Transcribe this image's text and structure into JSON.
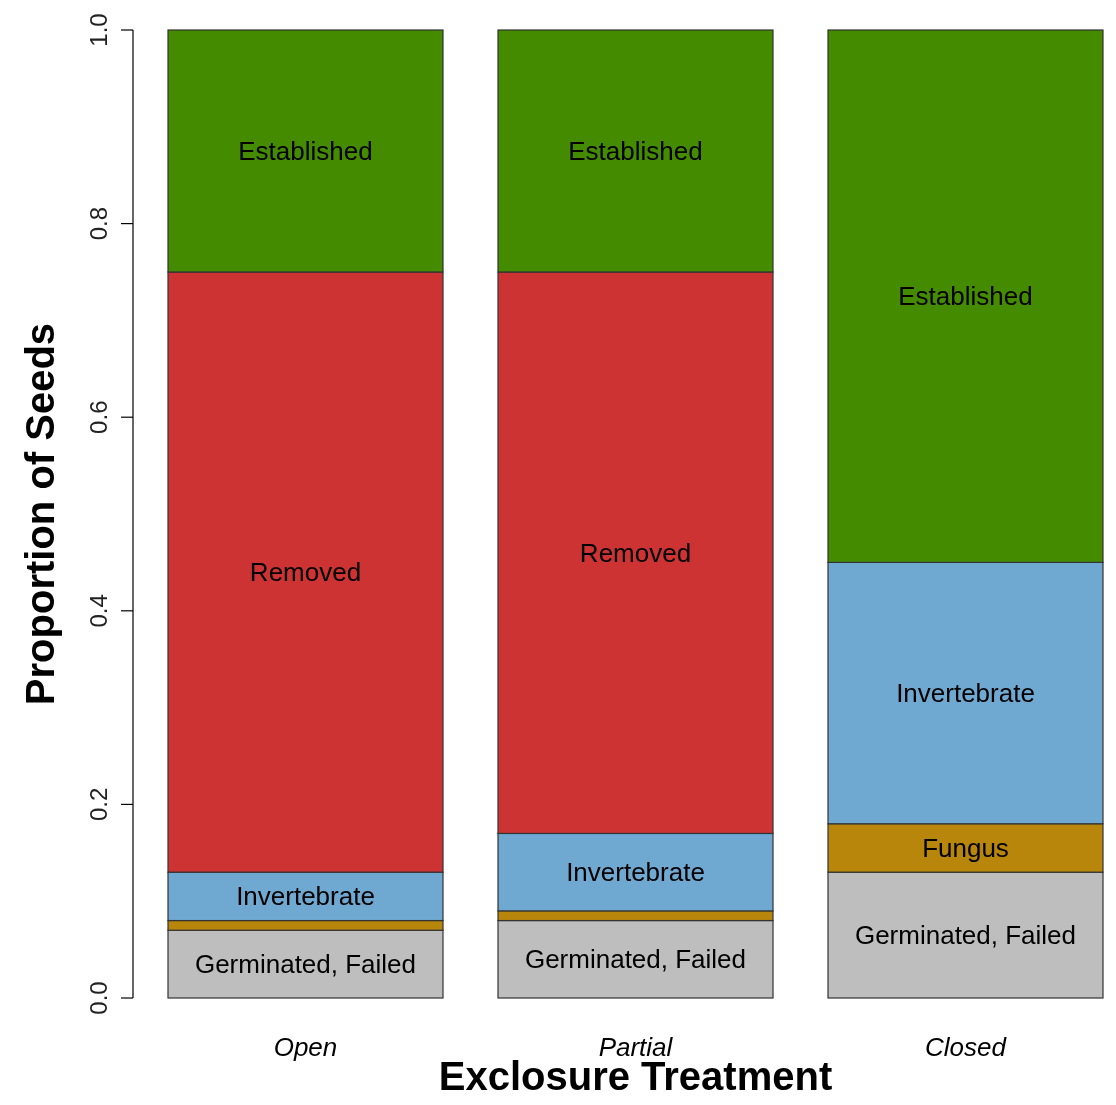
{
  "chart_data": {
    "type": "bar",
    "stacked": true,
    "xlabel": "Exclosure Treatment",
    "ylabel": "Proportion of Seeds",
    "categories": [
      "Open",
      "Partial",
      "Closed"
    ],
    "series": [
      {
        "name": "Germinated, Failed",
        "color": "#bebebe",
        "values": [
          0.07,
          0.08,
          0.13
        ]
      },
      {
        "name": "Fungus",
        "color": "#b8860b",
        "values": [
          0.01,
          0.01,
          0.05
        ]
      },
      {
        "name": "Invertebrate",
        "color": "#6fa8d0",
        "values": [
          0.05,
          0.08,
          0.27
        ]
      },
      {
        "name": "Removed",
        "color": "#cd3333",
        "values": [
          0.62,
          0.58,
          0
        ]
      },
      {
        "name": "Established",
        "color": "#458b00",
        "values": [
          0.25,
          0.25,
          0.55
        ]
      }
    ],
    "ylim": [
      0,
      1
    ],
    "yticks": [
      {
        "value": 0,
        "label": "0.0"
      },
      {
        "value": 0.2,
        "label": "0.2"
      },
      {
        "value": 0.4,
        "label": "0.4"
      },
      {
        "value": 0.6,
        "label": "0.6"
      },
      {
        "value": 0.8,
        "label": "0.8"
      },
      {
        "value": 1,
        "label": "1.0"
      }
    ],
    "grid": false,
    "legend": false
  }
}
